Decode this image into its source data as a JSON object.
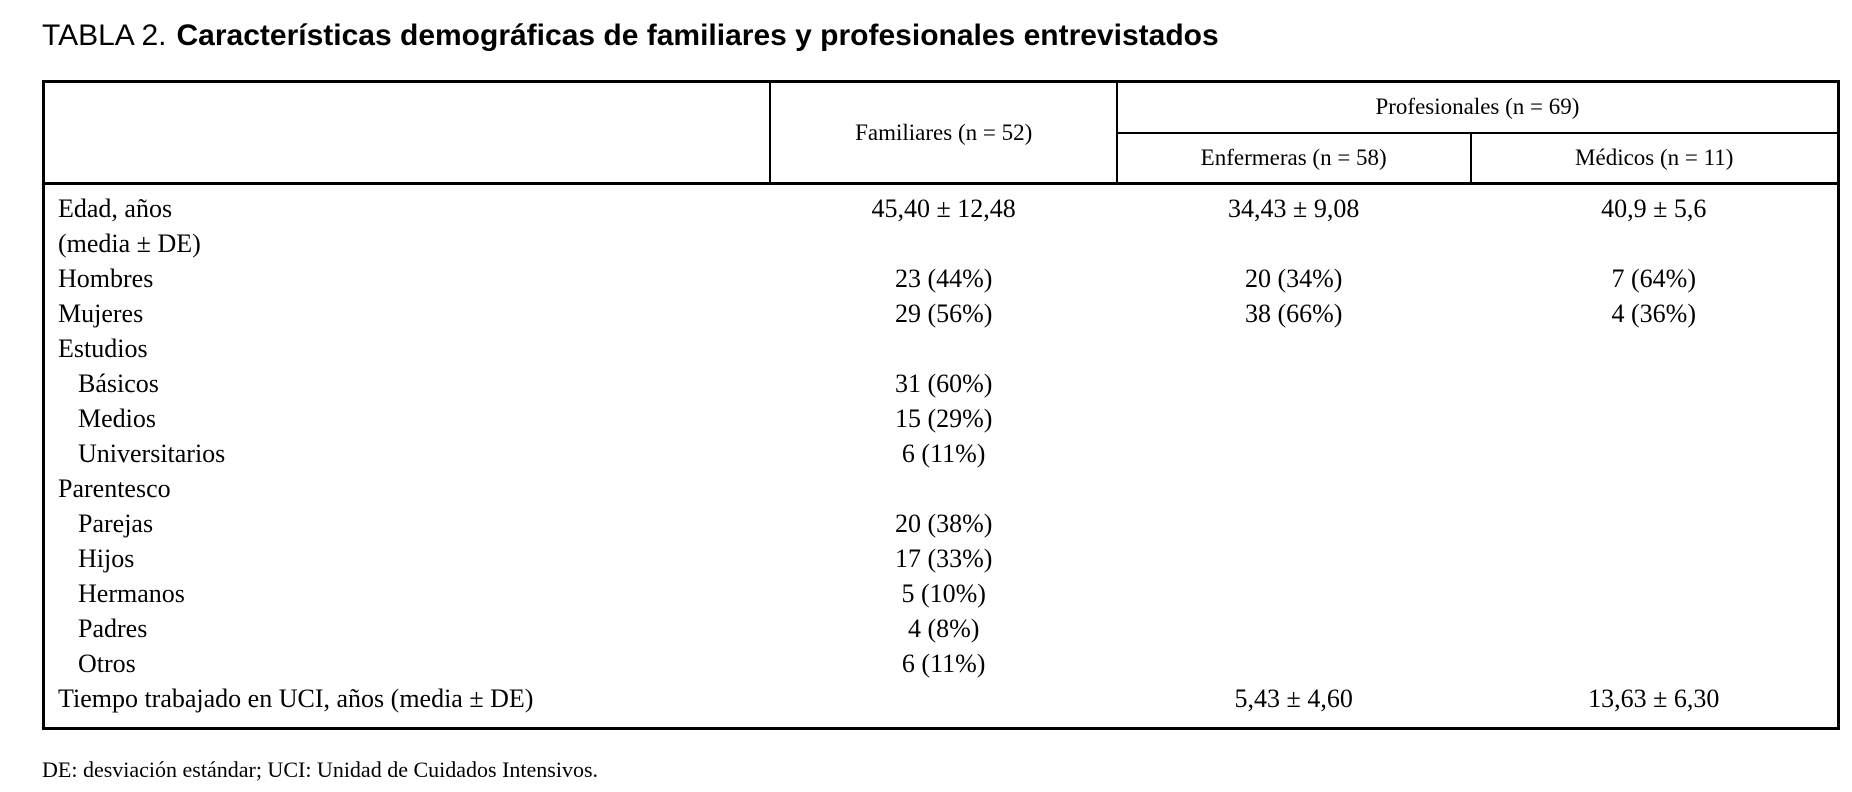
{
  "title": {
    "label": "TABLA 2.",
    "text": "Características demográficas de familiares y profesionales entrevistados"
  },
  "table": {
    "headers": {
      "familiares": "Familiares (n = 52)",
      "profesionales": "Profesionales (n = 69)",
      "enfermeras": "Enfermeras (n = 58)",
      "medicos": "Médicos (n = 11)"
    },
    "rows": [
      {
        "label": "Edad, años",
        "label2": "(media ± DE)",
        "values": [
          "45,40 ± 12,48",
          "34,43 ± 9,08",
          "40,9 ± 5,6"
        ]
      },
      {
        "label": "Hombres",
        "values": [
          "23 (44%)",
          "20 (34%)",
          "7 (64%)"
        ]
      },
      {
        "label": "Mujeres",
        "values": [
          "29 (56%)",
          "38 (66%)",
          "4 (36%)"
        ]
      },
      {
        "label": "Estudios",
        "values": [
          "",
          "",
          ""
        ]
      },
      {
        "label": "Básicos",
        "values": [
          "31 (60%)",
          "",
          ""
        ]
      },
      {
        "label": "Medios",
        "values": [
          "15 (29%)",
          "",
          ""
        ]
      },
      {
        "label": "Universitarios",
        "values": [
          "6 (11%)",
          "",
          ""
        ]
      },
      {
        "label": "Parentesco",
        "values": [
          "",
          "",
          ""
        ]
      },
      {
        "label": "Parejas",
        "values": [
          "20 (38%)",
          "",
          ""
        ]
      },
      {
        "label": "Hijos",
        "values": [
          "17 (33%)",
          "",
          ""
        ]
      },
      {
        "label": "Hermanos",
        "values": [
          "5 (10%)",
          "",
          ""
        ]
      },
      {
        "label": "Padres",
        "values": [
          "4 (8%)",
          "",
          ""
        ]
      },
      {
        "label": "Otros",
        "values": [
          "6 (11%)",
          "",
          ""
        ]
      },
      {
        "label": "Tiempo trabajado en UCI, años (media ± DE)",
        "values": [
          "",
          "5,43 ± 4,60",
          "13,63 ± 6,30"
        ]
      }
    ]
  },
  "footnote": "DE: desviación estándar; UCI: Unidad de Cuidados Intensivos."
}
